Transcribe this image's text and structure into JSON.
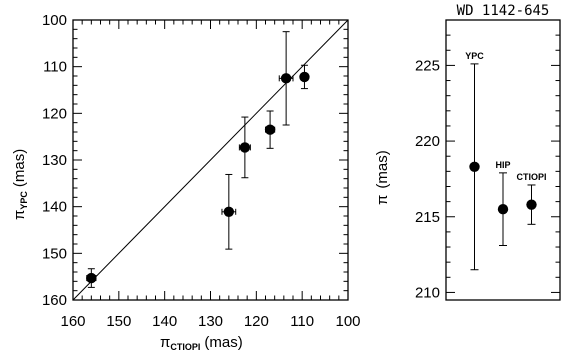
{
  "chart_data": [
    {
      "type": "scatter",
      "x_axis": {
        "symbol": "π",
        "subscript": "CTIOPI",
        "unit": "(mas)",
        "xlim": [
          160,
          100
        ],
        "tick_labels": [
          "160",
          "150",
          "140",
          "130",
          "120",
          "110",
          "100"
        ],
        "tick_values": [
          160,
          150,
          140,
          130,
          120,
          110,
          100
        ]
      },
      "y_axis": {
        "symbol": "π",
        "subscript": "YPC",
        "unit": "(mas)",
        "ylim": [
          160,
          100
        ],
        "tick_labels": [
          "100",
          "110",
          "120",
          "130",
          "140",
          "150",
          "160"
        ],
        "tick_values": [
          100,
          110,
          120,
          130,
          140,
          150,
          160
        ]
      },
      "reference_line": "y = x",
      "points": [
        {
          "x": 156.0,
          "y": 155.3,
          "xerr": 1.0,
          "yerr": 2.0
        },
        {
          "x": 126.0,
          "y": 141.1,
          "xerr": 1.5,
          "yerr": 8.0
        },
        {
          "x": 122.5,
          "y": 127.3,
          "xerr": 1.2,
          "yerr": 6.5
        },
        {
          "x": 117.0,
          "y": 123.5,
          "xerr": 1.0,
          "yerr": 4.0
        },
        {
          "x": 113.5,
          "y": 112.5,
          "xerr": 1.5,
          "yerr": 10.0
        },
        {
          "x": 109.5,
          "y": 112.2,
          "xerr": 0.6,
          "yerr": 2.5
        }
      ]
    },
    {
      "type": "scatter",
      "title": "WD 1142-645",
      "y_axis": {
        "symbol": "π",
        "unit": "(mas)",
        "ylim": [
          209.5,
          228
        ],
        "tick_labels": [
          "210",
          "215",
          "220",
          "225"
        ],
        "tick_values": [
          210,
          215,
          220,
          225
        ]
      },
      "points": [
        {
          "label": "YPC",
          "y": 218.3,
          "yerr": 6.8
        },
        {
          "label": "HIP",
          "y": 215.5,
          "yerr": 2.4
        },
        {
          "label": "CTIOPI",
          "y": 215.8,
          "yerr": 1.3
        }
      ]
    }
  ]
}
